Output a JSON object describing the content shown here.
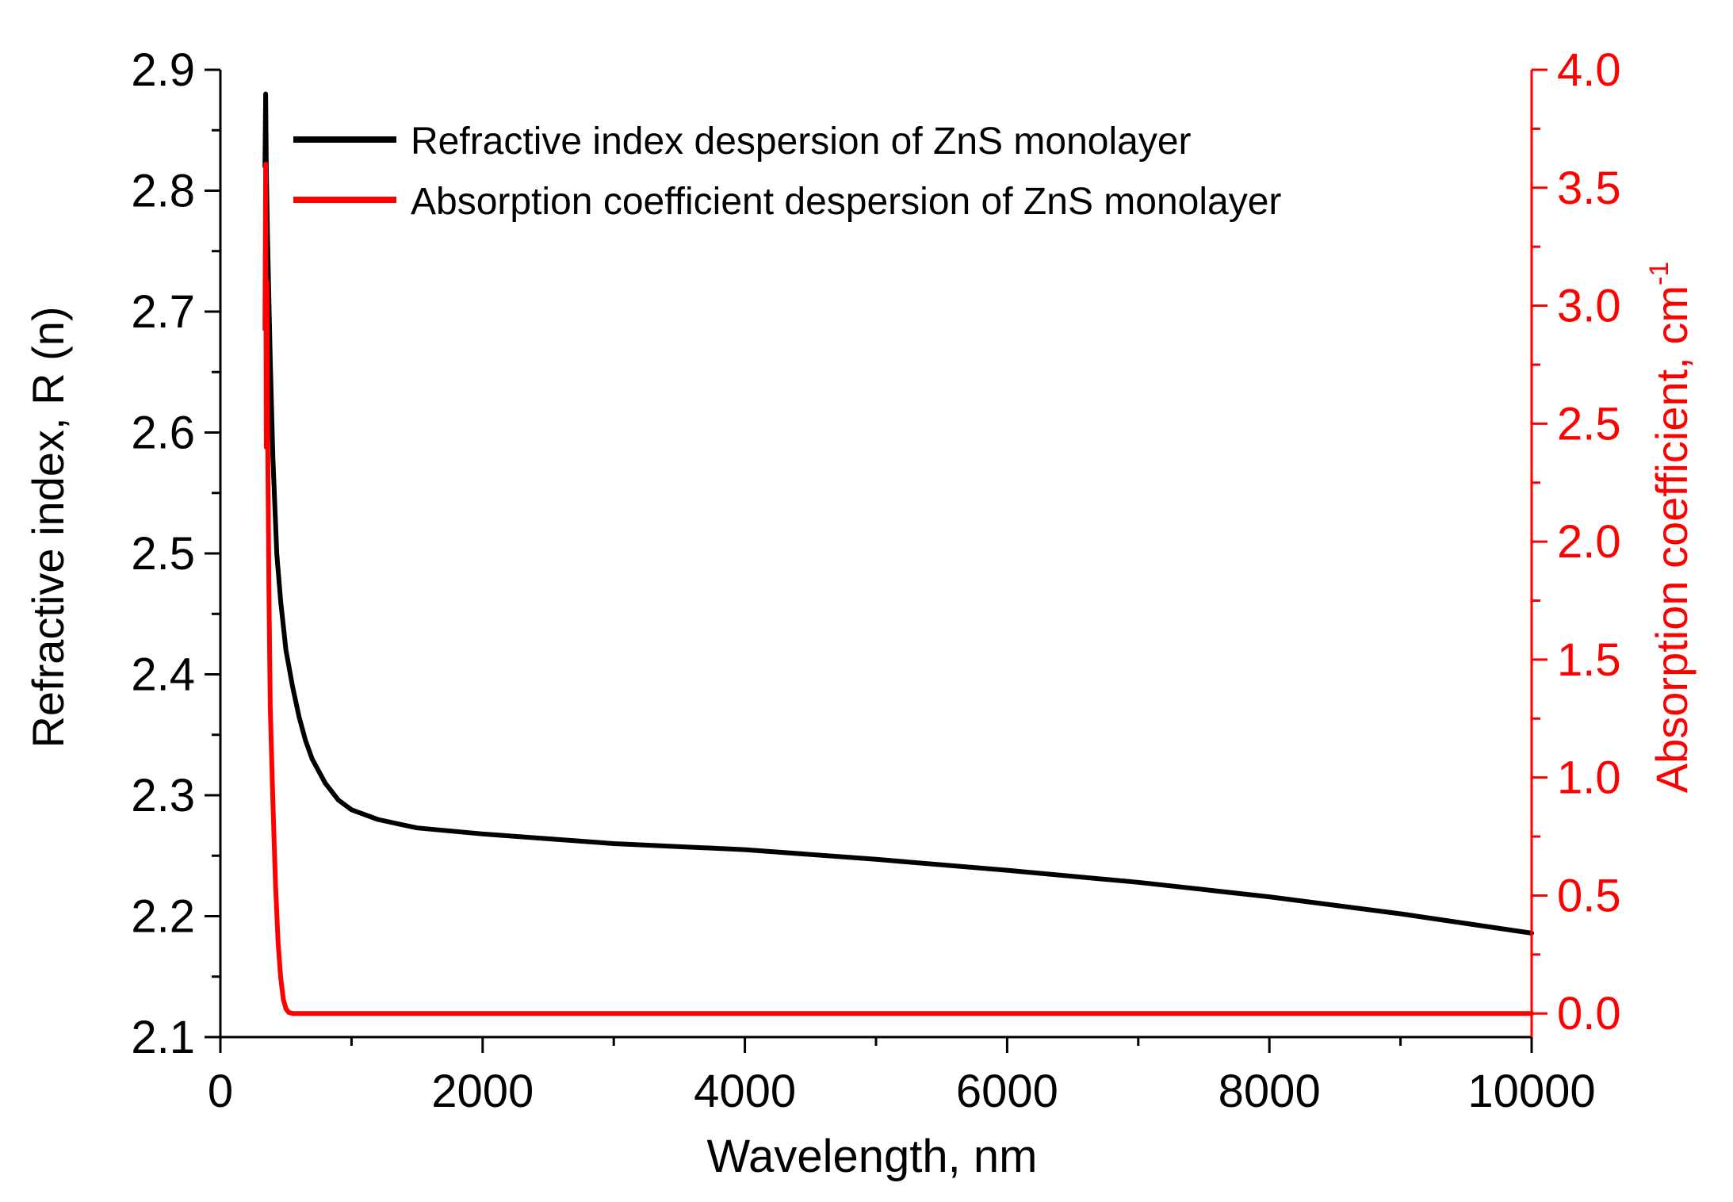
{
  "chart_data": {
    "type": "line",
    "title": "",
    "xlabel": "Wavelength, nm",
    "ylabel_left": "Refractive index, R (n)",
    "ylabel_right_base": "Absorption coefficient, cm",
    "ylabel_right_sup": "-1",
    "xlim": [
      0,
      10000
    ],
    "ylim_left": [
      2.1,
      2.9
    ],
    "ylim_right": [
      -0.1,
      4.0
    ],
    "x_ticks": [
      "0",
      "2000",
      "4000",
      "6000",
      "8000",
      "10000"
    ],
    "y_left_ticks": [
      "2.1",
      "2.2",
      "2.3",
      "2.4",
      "2.5",
      "2.6",
      "2.7",
      "2.8",
      "2.9"
    ],
    "y_right_ticks": [
      "0.0",
      "0.5",
      "1.0",
      "1.5",
      "2.0",
      "2.5",
      "3.0",
      "3.5",
      "4.0"
    ],
    "legend_position": "top-left",
    "colors": {
      "axis": "#000000",
      "refractive": "#000000",
      "absorption": "#ff0000"
    },
    "series": [
      {
        "name": "Refractive index despersion of ZnS monolayer",
        "axis": "left",
        "x": [
          340,
          345,
          350,
          360,
          380,
          400,
          430,
          460,
          500,
          550,
          600,
          650,
          700,
          800,
          900,
          1000,
          1200,
          1500,
          2000,
          2500,
          3000,
          4000,
          5000,
          6000,
          7000,
          8000,
          9000,
          10000
        ],
        "values": [
          2.82,
          2.88,
          2.82,
          2.76,
          2.66,
          2.58,
          2.5,
          2.46,
          2.42,
          2.39,
          2.365,
          2.345,
          2.33,
          2.31,
          2.296,
          2.288,
          2.28,
          2.273,
          2.268,
          2.264,
          2.26,
          2.255,
          2.247,
          2.238,
          2.228,
          2.216,
          2.202,
          2.186
        ]
      },
      {
        "name": "Absorption coefficient despersion of ZnS monolayer",
        "axis": "right",
        "x": [
          340,
          345,
          350,
          355,
          360,
          370,
          380,
          400,
          420,
          440,
          460,
          480,
          500,
          520,
          550,
          600,
          1000,
          2000,
          4000,
          6000,
          8000,
          10000
        ],
        "values": [
          2.9,
          3.6,
          2.4,
          3.1,
          2.5,
          1.8,
          1.3,
          0.9,
          0.55,
          0.3,
          0.15,
          0.06,
          0.02,
          0.005,
          0.0,
          0.0,
          0.0,
          0.0,
          0.0,
          0.0,
          0.0,
          0.0
        ]
      }
    ]
  }
}
